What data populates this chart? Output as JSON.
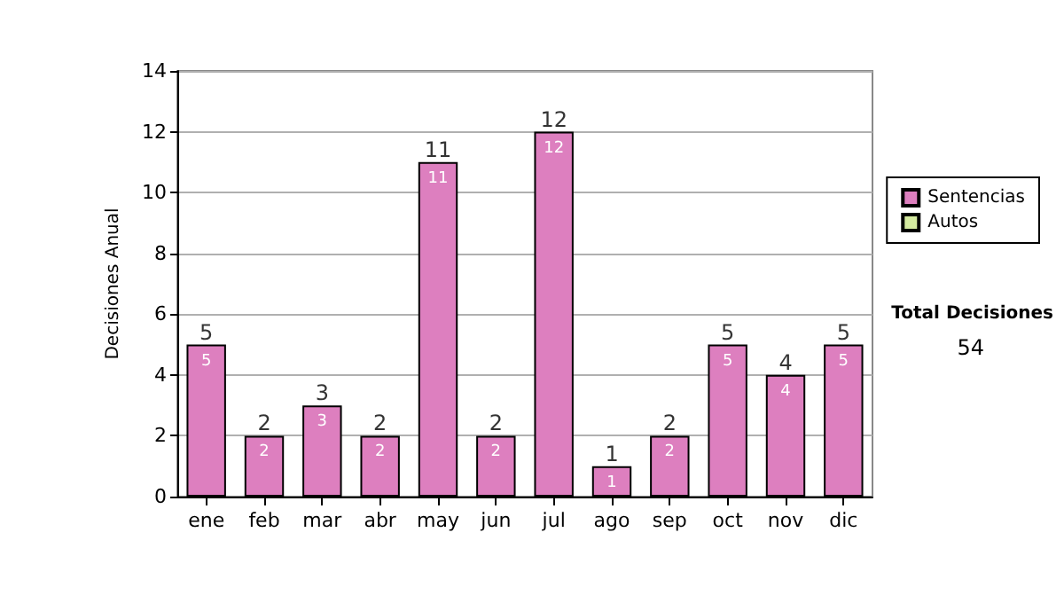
{
  "chart_data": {
    "type": "bar",
    "ylabel": "Decisiones Anual",
    "categories": [
      "ene",
      "feb",
      "mar",
      "abr",
      "may",
      "jun",
      "jul",
      "ago",
      "sep",
      "oct",
      "nov",
      "dic"
    ],
    "series": [
      {
        "name": "Sentencias",
        "color": "#dd7fbf",
        "values": [
          5,
          2,
          3,
          2,
          11,
          2,
          12,
          1,
          2,
          5,
          4,
          5
        ]
      },
      {
        "name": "Autos",
        "color": "#d4eaa0",
        "values": [
          null,
          null,
          null,
          null,
          null,
          null,
          null,
          null,
          null,
          null,
          null,
          null
        ]
      }
    ],
    "stacked": true,
    "data_labels": true,
    "totals": [
      "5",
      "2",
      "3",
      "2",
      "11",
      "2",
      "12",
      "1",
      "2",
      "5",
      "4",
      "5"
    ],
    "ylim": [
      0,
      14
    ],
    "yticks": [
      0,
      2,
      4,
      6,
      8,
      10,
      12,
      14
    ],
    "grid": "y",
    "legend": "right",
    "annotations": [
      "Total Decisiones",
      "54"
    ]
  }
}
